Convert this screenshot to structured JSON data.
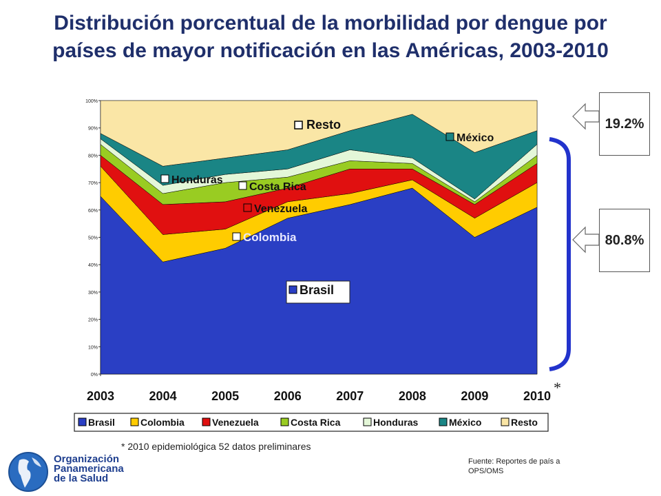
{
  "title_line1": "Distribución porcentual de la morbilidad por dengue por",
  "title_line2": "países de mayor notificación en las Américas,  2003-2010",
  "callouts": {
    "resto_pct": "19.2%",
    "top_pct": "80.8%"
  },
  "asterisk": "*",
  "footnote": "* 2010  epidemiológica 52 datos preliminares",
  "source": "Fuente: Reportes de país a OPS/OMS",
  "org": {
    "line1": "Organización",
    "line2": "Panamericana",
    "line3": "de la Salud"
  },
  "colors": {
    "Brasil": "#2a3fc4",
    "Colombia": "#ffcc00",
    "Venezuela": "#e01010",
    "Costa Rica": "#99cc22",
    "Honduras": "#e4f7d8",
    "México": "#1a8585",
    "Resto": "#fae6a6",
    "title": "#1f2f6b",
    "bracket": "#2233cc"
  },
  "chart_data": {
    "type": "area",
    "stacked": true,
    "percent": true,
    "x": [
      "2003",
      "2004",
      "2005",
      "2006",
      "2007",
      "2008",
      "2009",
      "2010"
    ],
    "series": [
      {
        "name": "Brasil",
        "values": [
          65,
          41,
          46,
          57,
          62,
          68,
          50,
          61
        ]
      },
      {
        "name": "Colombia",
        "values": [
          11,
          10,
          7,
          6,
          4,
          3,
          7,
          9
        ]
      },
      {
        "name": "Venezuela",
        "values": [
          4,
          11,
          10,
          5,
          9,
          4,
          5,
          7
        ]
      },
      {
        "name": "Costa Rica",
        "values": [
          4,
          4,
          7,
          4,
          3,
          2,
          1,
          3
        ]
      },
      {
        "name": "Honduras",
        "values": [
          2,
          3,
          3,
          3,
          4,
          2,
          1,
          4
        ]
      },
      {
        "name": "México",
        "values": [
          2,
          7,
          6,
          7,
          7,
          16,
          17,
          5
        ]
      },
      {
        "name": "Resto",
        "values": [
          12,
          24,
          21,
          18,
          11,
          5,
          19,
          11
        ]
      }
    ],
    "ylim": [
      0,
      100
    ],
    "yticks": [
      "0%",
      "10%",
      "20%",
      "30%",
      "40%",
      "50%",
      "60%",
      "70%",
      "80%",
      "90%",
      "100%"
    ],
    "series_labels": [
      "Resto",
      "México",
      "Honduras",
      "Costa Rica",
      "Venezuela",
      "Colombia",
      "Brasil"
    ],
    "legend": [
      "Brasil",
      "Colombia",
      "Venezuela",
      "Costa Rica",
      "Honduras",
      "México",
      "Resto"
    ],
    "legend_position": "bottom"
  }
}
